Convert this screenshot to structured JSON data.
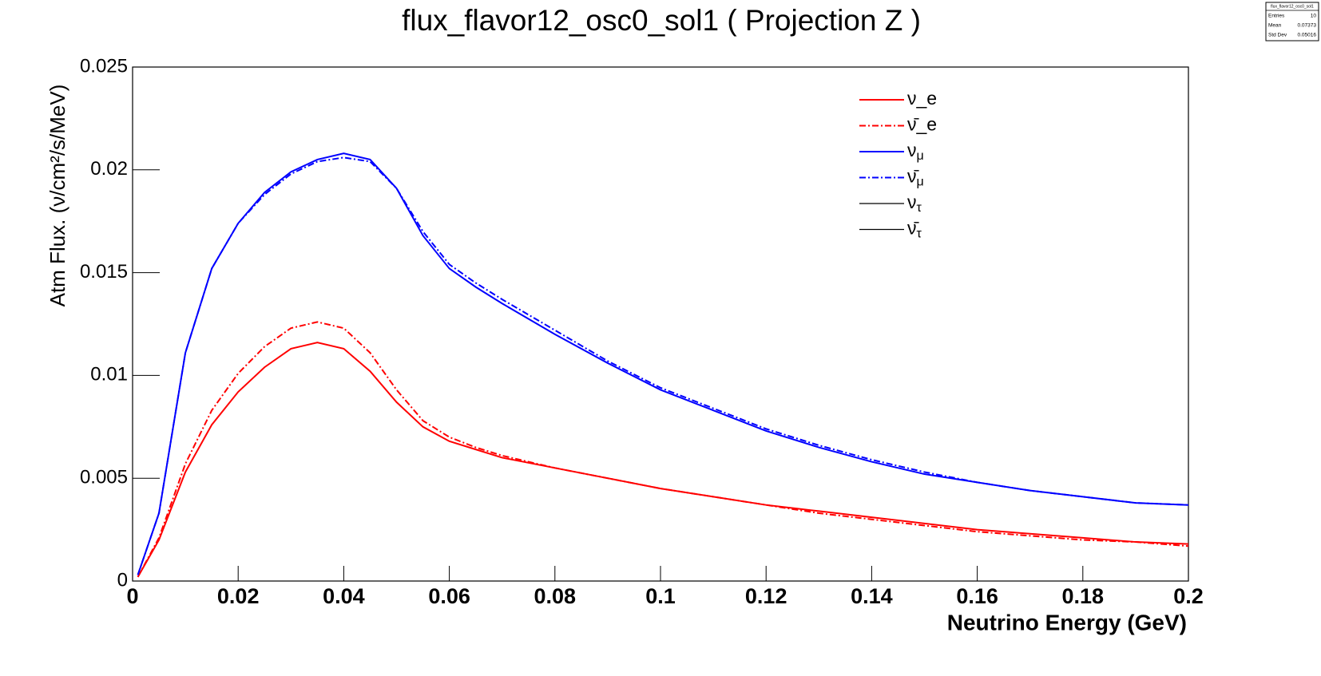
{
  "chart_data": {
    "type": "line",
    "title": "flux_flavor12_osc0_sol1 ( Projection Z )",
    "xlabel": "Neutrino Energy (GeV)",
    "ylabel": "Atm Flux. (ν/cm²/s/MeV)",
    "x": [
      0.001,
      0.005,
      0.01,
      0.015,
      0.02,
      0.025,
      0.03,
      0.035,
      0.04,
      0.045,
      0.05,
      0.055,
      0.06,
      0.065,
      0.07,
      0.08,
      0.09,
      0.1,
      0.11,
      0.12,
      0.13,
      0.14,
      0.15,
      0.16,
      0.17,
      0.18,
      0.19,
      0.2
    ],
    "series": [
      {
        "name": "ν_e",
        "color": "#ff0000",
        "line_style": "solid",
        "values": [
          0.0002,
          0.002,
          0.0053,
          0.0076,
          0.0092,
          0.0104,
          0.0113,
          0.0116,
          0.0113,
          0.0102,
          0.0087,
          0.0075,
          0.0068,
          0.0064,
          0.006,
          0.0055,
          0.005,
          0.0045,
          0.0041,
          0.0037,
          0.0034,
          0.0031,
          0.0028,
          0.0025,
          0.0023,
          0.0021,
          0.0019,
          0.0018
        ]
      },
      {
        "name": "ν̄_e",
        "color": "#ff0000",
        "line_style": "dashdot",
        "values": [
          0.0002,
          0.0021,
          0.0057,
          0.0083,
          0.0101,
          0.0114,
          0.0123,
          0.0126,
          0.0123,
          0.0111,
          0.0093,
          0.0078,
          0.007,
          0.0065,
          0.0061,
          0.0055,
          0.005,
          0.0045,
          0.0041,
          0.0037,
          0.0033,
          0.003,
          0.0027,
          0.0024,
          0.0022,
          0.002,
          0.0019,
          0.0017
        ]
      },
      {
        "name": "νμ",
        "color": "#0000ff",
        "line_style": "solid",
        "values": [
          0.0003,
          0.0033,
          0.0111,
          0.0152,
          0.0174,
          0.0189,
          0.0199,
          0.0205,
          0.0208,
          0.0205,
          0.0191,
          0.0168,
          0.0152,
          0.0143,
          0.0135,
          0.012,
          0.0106,
          0.0093,
          0.0083,
          0.0073,
          0.0065,
          0.0058,
          0.0052,
          0.0048,
          0.0044,
          0.0041,
          0.0038,
          0.0037
        ]
      },
      {
        "name": "ν̄μ",
        "color": "#0000ff",
        "line_style": "dashdot",
        "values": [
          0.0003,
          0.0033,
          0.0111,
          0.0152,
          0.0174,
          0.0188,
          0.0198,
          0.0204,
          0.0206,
          0.0204,
          0.0191,
          0.017,
          0.0154,
          0.0145,
          0.0137,
          0.0122,
          0.0107,
          0.0094,
          0.0084,
          0.0074,
          0.0066,
          0.0059,
          0.0053,
          0.0048,
          0.0044,
          0.0041,
          0.0038,
          0.0037
        ]
      },
      {
        "name": "ντ",
        "color": "#000000",
        "line_style": "solid"
      },
      {
        "name": "ν̄τ",
        "color": "#000000",
        "line_style": "solid"
      }
    ],
    "xlim": [
      0,
      0.2
    ],
    "xticks": [
      0,
      0.02,
      0.04,
      0.06,
      0.08,
      0.1,
      0.12,
      0.14,
      0.16,
      0.18,
      0.2
    ],
    "ylim": [
      0,
      0.025
    ],
    "yticks": [
      0,
      0.005,
      0.01,
      0.015,
      0.02,
      0.025
    ],
    "grid": false,
    "legend": "upper right",
    "stats": {
      "title": "flux_flavor12_osc0_sol1",
      "rows": [
        [
          "Entries",
          10
        ],
        [
          "Mean",
          0.07373
        ],
        [
          "Std Dev",
          0.05016
        ]
      ]
    }
  }
}
